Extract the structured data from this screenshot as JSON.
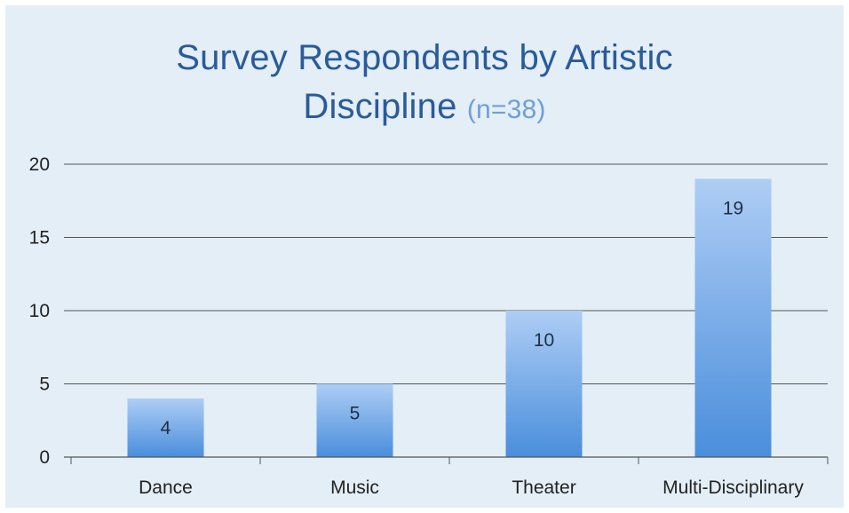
{
  "chart_data": {
    "type": "bar",
    "title": "Survey Respondents by Artistic Discipline",
    "title_line1": "Survey Respondents by Artistic",
    "title_line2": "Discipline",
    "subtitle": "(n=38)",
    "categories": [
      "Dance",
      "Music",
      "Theater",
      "Multi-Disciplinary"
    ],
    "values": [
      4,
      5,
      10,
      19
    ],
    "data_labels": [
      "4",
      "5",
      "10",
      "19"
    ],
    "xlabel": "",
    "ylabel": "",
    "ylim": [
      0,
      20
    ],
    "yticks": [
      0,
      5,
      10,
      15,
      20
    ],
    "grid": true,
    "legend": "none",
    "colors": {
      "bar_top": "#aecdf5",
      "bar_bottom": "#4a8edb",
      "title": "#2a5b9a",
      "subtitle": "#6e9fd6",
      "background": "#e3eef6",
      "grid": "#555555"
    }
  }
}
